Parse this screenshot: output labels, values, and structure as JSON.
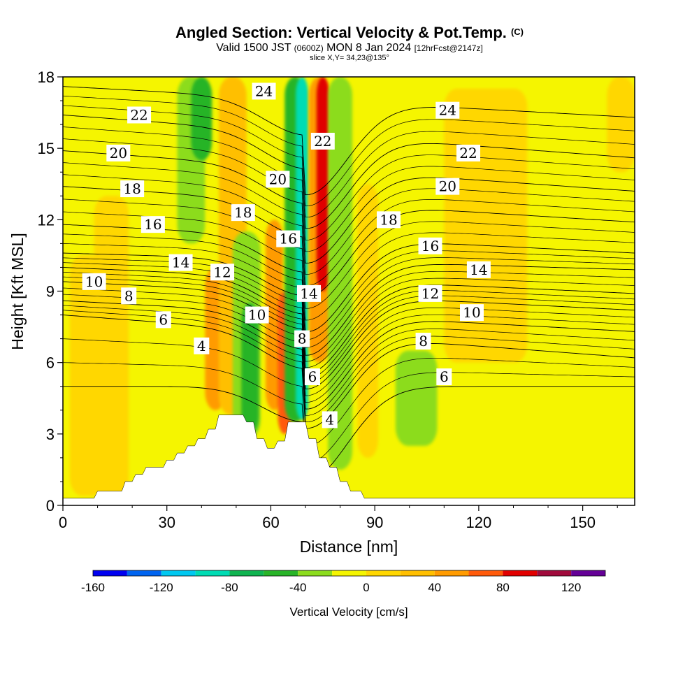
{
  "header": {
    "title": "Angled Section: Vertical Velocity & Pot.Temp.",
    "copyright": "(C)",
    "subtitle_a": "Valid 1500 JST",
    "subtitle_b": "(0600Z)",
    "subtitle_c": "MON 8 Jan 2024",
    "subtitle_d": "[12hrFcst@2147z]",
    "slice": "slice X,Y= 34,23@135°"
  },
  "chart_data": {
    "type": "heatmap",
    "title": "Angled Section: Vertical Velocity & Pot.Temp.",
    "xlabel": "Distance [nm]",
    "ylabel": "Height [Kft MSL]",
    "xlim": [
      0,
      165
    ],
    "ylim": [
      0,
      18
    ],
    "x_ticks": [
      "0",
      "30",
      "60",
      "90",
      "120",
      "150"
    ],
    "y_ticks": [
      "0",
      "3",
      "6",
      "9",
      "12",
      "15",
      "18"
    ],
    "colorbar": {
      "label": "Vertical Velocity [cm/s]",
      "ticks": [
        "-160",
        "-120",
        "-80",
        "-40",
        "0",
        "40",
        "80",
        "120"
      ],
      "bins": [
        {
          "from": -160,
          "to": -140,
          "color": "#0000f0"
        },
        {
          "from": -140,
          "to": -120,
          "color": "#0064f0"
        },
        {
          "from": -120,
          "to": -100,
          "color": "#00c8f0"
        },
        {
          "from": -100,
          "to": -80,
          "color": "#00dcb4"
        },
        {
          "from": -80,
          "to": -60,
          "color": "#10b450"
        },
        {
          "from": -60,
          "to": -40,
          "color": "#28b428"
        },
        {
          "from": -40,
          "to": -20,
          "color": "#8cdc1e"
        },
        {
          "from": -20,
          "to": 0,
          "color": "#f5f500"
        },
        {
          "from": 0,
          "to": 20,
          "color": "#ffd700"
        },
        {
          "from": 20,
          "to": 40,
          "color": "#ffbf00"
        },
        {
          "from": 40,
          "to": 60,
          "color": "#ff9b00"
        },
        {
          "from": 60,
          "to": 80,
          "color": "#ff5a0a"
        },
        {
          "from": 80,
          "to": 100,
          "color": "#e10000"
        },
        {
          "from": 100,
          "to": 120,
          "color": "#a00a3c"
        },
        {
          "from": 120,
          "to": 140,
          "color": "#640096"
        }
      ]
    },
    "velocity_features": [
      {
        "x": 7,
        "y0": 0.4,
        "y1": 10.5,
        "halfwidth": 5,
        "value": 10
      },
      {
        "x": 14,
        "y0": 0.4,
        "y1": 13,
        "halfwidth": 5,
        "value": 10
      },
      {
        "x": 37,
        "y0": 11,
        "y1": 18,
        "halfwidth": 4,
        "value": -30
      },
      {
        "x": 40,
        "y0": 14.5,
        "y1": 18,
        "halfwidth": 3,
        "value": -50
      },
      {
        "x": 44,
        "y0": 4,
        "y1": 10,
        "halfwidth": 3,
        "value": 50
      },
      {
        "x": 49,
        "y0": 3.8,
        "y1": 18,
        "halfwidth": 4,
        "value": 30
      },
      {
        "x": 53,
        "y0": 2.8,
        "y1": 11.5,
        "halfwidth": 4,
        "value": -30
      },
      {
        "x": 54,
        "y0": 3,
        "y1": 8.5,
        "halfwidth": 2.5,
        "value": -50
      },
      {
        "x": 61,
        "y0": 4,
        "y1": 12,
        "halfwidth": 2.5,
        "value": 50
      },
      {
        "x": 64,
        "y0": 3,
        "y1": 9,
        "halfwidth": 2,
        "value": 70
      },
      {
        "x": 67,
        "y0": 3.5,
        "y1": 18,
        "halfwidth": 3,
        "value": -50
      },
      {
        "x": 69,
        "y0": 3.6,
        "y1": 18,
        "halfwidth": 1.8,
        "value": -100
      },
      {
        "x": 74,
        "y0": 6,
        "y1": 18,
        "halfwidth": 3,
        "value": 50
      },
      {
        "x": 75,
        "y0": 9,
        "y1": 18,
        "halfwidth": 1.8,
        "value": 90
      },
      {
        "x": 80,
        "y0": 1.5,
        "y1": 18,
        "halfwidth": 3.5,
        "value": -30
      },
      {
        "x": 88,
        "y0": 2,
        "y1": 13.5,
        "halfwidth": 3,
        "value": 10
      },
      {
        "x": 102,
        "y0": 2.5,
        "y1": 6.5,
        "halfwidth": 6,
        "value": -30
      },
      {
        "x": 122,
        "y0": 6,
        "y1": 17.5,
        "halfwidth": 12,
        "value": 10
      },
      {
        "x": 161,
        "y0": 14,
        "y1": 18,
        "halfwidth": 4,
        "value": 10
      }
    ],
    "terrain_kft": [
      {
        "x": 0,
        "h": 0.3
      },
      {
        "x": 9,
        "h": 0.3
      },
      {
        "x": 10,
        "h": 0.6
      },
      {
        "x": 17,
        "h": 0.6
      },
      {
        "x": 18,
        "h": 1.0
      },
      {
        "x": 20,
        "h": 1.0
      },
      {
        "x": 21,
        "h": 1.3
      },
      {
        "x": 23,
        "h": 1.3
      },
      {
        "x": 24,
        "h": 1.6
      },
      {
        "x": 29,
        "h": 1.6
      },
      {
        "x": 30,
        "h": 1.9
      },
      {
        "x": 32,
        "h": 1.9
      },
      {
        "x": 33,
        "h": 2.2
      },
      {
        "x": 35,
        "h": 2.2
      },
      {
        "x": 36,
        "h": 2.5
      },
      {
        "x": 38,
        "h": 2.5
      },
      {
        "x": 39,
        "h": 2.8
      },
      {
        "x": 41,
        "h": 2.8
      },
      {
        "x": 42,
        "h": 3.2
      },
      {
        "x": 44,
        "h": 3.2
      },
      {
        "x": 45,
        "h": 3.8
      },
      {
        "x": 52,
        "h": 3.8
      },
      {
        "x": 53,
        "h": 3.5
      },
      {
        "x": 55,
        "h": 3.5
      },
      {
        "x": 56,
        "h": 2.8
      },
      {
        "x": 58,
        "h": 2.8
      },
      {
        "x": 59,
        "h": 2.4
      },
      {
        "x": 61,
        "h": 2.4
      },
      {
        "x": 62,
        "h": 2.7
      },
      {
        "x": 64,
        "h": 2.7
      },
      {
        "x": 65,
        "h": 3.5
      },
      {
        "x": 70,
        "h": 3.5
      },
      {
        "x": 71,
        "h": 2.8
      },
      {
        "x": 73,
        "h": 2.8
      },
      {
        "x": 74,
        "h": 2.0
      },
      {
        "x": 76,
        "h": 2.0
      },
      {
        "x": 77,
        "h": 1.6
      },
      {
        "x": 79,
        "h": 1.6
      },
      {
        "x": 80,
        "h": 1.0
      },
      {
        "x": 82,
        "h": 1.0
      },
      {
        "x": 83,
        "h": 0.6
      },
      {
        "x": 86,
        "h": 0.6
      },
      {
        "x": 87,
        "h": 0.3
      },
      {
        "x": 165,
        "h": 0.3
      }
    ],
    "theta_ridge": {
      "x": 70,
      "width": 12,
      "left_amplitude_kft": 2.5,
      "right_amplitude_kft": 4.0
    },
    "theta_contours": [
      {
        "label": "4",
        "y_left": 5.0,
        "y_right": 5.0,
        "label_x": 40,
        "label_y": 6.7
      },
      {
        "label": "6",
        "y_left": 8.0,
        "y_right": 6.2,
        "label_x": 29,
        "label_y": 7.8
      },
      {
        "label": "8",
        "y_left": 8.6,
        "y_right": 7.3,
        "label_x": 19,
        "label_y": 8.8
      },
      {
        "label": "10",
        "y_left": 9.4,
        "y_right": 8.2,
        "label_x": 9,
        "label_y": 9.4
      },
      {
        "label": "12",
        "y_left": 10.0,
        "y_right": 8.9,
        "label_x": 46,
        "label_y": 9.8
      },
      {
        "label": "14",
        "y_left": 10.6,
        "y_right": 9.9,
        "label_x": 34,
        "label_y": 10.2
      },
      {
        "label": "16",
        "y_left": 11.8,
        "y_right": 10.6,
        "label_x": 26,
        "label_y": 11.8
      },
      {
        "label": "18",
        "y_left": 13.4,
        "y_right": 11.9,
        "label_x": 20,
        "label_y": 13.3
      },
      {
        "label": "20",
        "y_left": 14.9,
        "y_right": 13.2,
        "label_x": 16,
        "label_y": 14.8
      },
      {
        "label": "22",
        "y_left": 16.4,
        "y_right": 14.6,
        "label_x": 22,
        "label_y": 16.4
      },
      {
        "label": "24",
        "y_left": 17.6,
        "y_right": 16.3,
        "label_x": 58,
        "label_y": 17.4
      }
    ],
    "theta_labels_extra": [
      {
        "label": "4",
        "x": 77,
        "y": 3.6
      },
      {
        "label": "6",
        "x": 72,
        "y": 5.4
      },
      {
        "label": "8",
        "x": 69,
        "y": 7.0
      },
      {
        "label": "10",
        "x": 56,
        "y": 8.0
      },
      {
        "label": "14",
        "x": 71,
        "y": 8.9
      },
      {
        "label": "16",
        "x": 65,
        "y": 11.2
      },
      {
        "label": "18",
        "x": 52,
        "y": 12.3
      },
      {
        "label": "20",
        "x": 62,
        "y": 13.7
      },
      {
        "label": "22",
        "x": 75,
        "y": 15.3
      },
      {
        "label": "18",
        "x": 94,
        "y": 12.0
      },
      {
        "label": "16",
        "x": 106,
        "y": 10.9
      },
      {
        "label": "12",
        "x": 106,
        "y": 8.9
      },
      {
        "label": "8",
        "x": 104,
        "y": 6.9
      },
      {
        "label": "6",
        "x": 110,
        "y": 5.4
      },
      {
        "label": "10",
        "x": 118,
        "y": 8.1
      },
      {
        "label": "14",
        "x": 120,
        "y": 9.9
      },
      {
        "label": "20",
        "x": 111,
        "y": 13.4
      },
      {
        "label": "22",
        "x": 117,
        "y": 14.8
      },
      {
        "label": "24",
        "x": 111,
        "y": 16.6
      }
    ]
  }
}
